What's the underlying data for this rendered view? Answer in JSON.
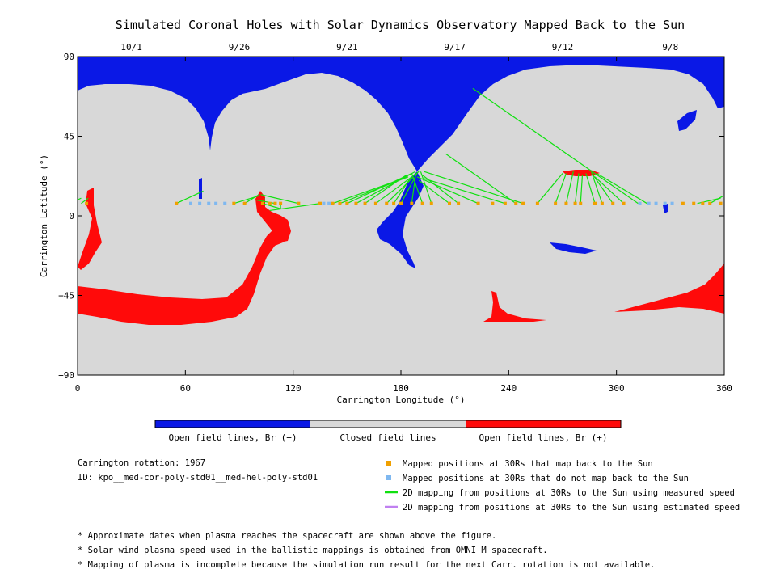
{
  "title": "Simulated Coronal Holes with Solar Dynamics Observatory Mapped Back to the Sun",
  "colors": {
    "open_negative": "#0a18e6",
    "closed": "#d8d8d8",
    "open_positive": "#ff0a0a",
    "mapped": "#f0a000",
    "unmapped": "#7fb8f0",
    "measured_line": "#10e010",
    "estimated_line": "#c080f0"
  },
  "chart_data": {
    "type": "heatmap",
    "title": "Simulated Coronal Holes with Solar Dynamics Observatory Mapped Back to the Sun",
    "xlabel": "Carrington Longitude (°)",
    "ylabel": "Carrington Latitude (°)",
    "xlim": [
      0,
      360
    ],
    "ylim": [
      -90,
      90
    ],
    "x_ticks": [
      0,
      60,
      120,
      180,
      240,
      300,
      360
    ],
    "y_ticks": [
      90,
      45,
      0,
      -45,
      -90
    ],
    "top_dates": [
      {
        "label": "10/1",
        "lon": 30
      },
      {
        "label": "9/26",
        "lon": 90
      },
      {
        "label": "9/21",
        "lon": 150
      },
      {
        "label": "9/17",
        "lon": 210
      },
      {
        "label": "9/12",
        "lon": 270
      },
      {
        "label": "9/8",
        "lon": 330
      }
    ],
    "mapped_lon": [
      5,
      55,
      87,
      93,
      103,
      107,
      110,
      113,
      123,
      135,
      142,
      146,
      150,
      155,
      160,
      166,
      172,
      176,
      180,
      186,
      192,
      197,
      207,
      212,
      223,
      231,
      238,
      244,
      248,
      256,
      266,
      272,
      277,
      280,
      288,
      292,
      298,
      304,
      337,
      343,
      348,
      352,
      358
    ],
    "unmapped_lon": [
      63,
      68,
      73,
      77,
      82,
      137,
      140,
      313,
      318,
      322,
      327,
      331
    ],
    "positions_lat": 7,
    "measured_lines": [
      {
        "from": [
          2,
          7
        ],
        "to": [
          6,
          10
        ]
      },
      {
        "from": [
          55,
          7
        ],
        "to": [
          70,
          14
        ]
      },
      {
        "from": [
          87,
          7
        ],
        "to": [
          100,
          11
        ]
      },
      {
        "from": [
          93,
          7
        ],
        "to": [
          101,
          12
        ]
      },
      {
        "from": [
          103,
          7
        ],
        "to": [
          104,
          10
        ]
      },
      {
        "from": [
          110,
          7
        ],
        "to": [
          99,
          9
        ]
      },
      {
        "from": [
          123,
          7
        ],
        "to": [
          102,
          12
        ]
      },
      {
        "from": [
          103,
          7
        ],
        "to": [
          113,
          4
        ]
      },
      {
        "from": [
          113,
          4
        ],
        "to": [
          113,
          6
        ]
      },
      {
        "from": [
          135,
          7
        ],
        "to": [
          107,
          3
        ]
      },
      {
        "from": [
          142,
          7
        ],
        "to": [
          184,
          22
        ]
      },
      {
        "from": [
          146,
          7
        ],
        "to": [
          184,
          22
        ]
      },
      {
        "from": [
          150,
          7
        ],
        "to": [
          186,
          24
        ]
      },
      {
        "from": [
          155,
          7
        ],
        "to": [
          188,
          25
        ]
      },
      {
        "from": [
          160,
          7
        ],
        "to": [
          183,
          23
        ]
      },
      {
        "from": [
          166,
          7
        ],
        "to": [
          190,
          25
        ]
      },
      {
        "from": [
          172,
          7
        ],
        "to": [
          187,
          22
        ]
      },
      {
        "from": [
          176,
          7
        ],
        "to": [
          185,
          21
        ]
      },
      {
        "from": [
          180,
          7
        ],
        "to": [
          189,
          24
        ]
      },
      {
        "from": [
          186,
          7
        ],
        "to": [
          188,
          22
        ]
      },
      {
        "from": [
          192,
          7
        ],
        "to": [
          186,
          24
        ]
      },
      {
        "from": [
          197,
          7
        ],
        "to": [
          191,
          25
        ]
      },
      {
        "from": [
          207,
          7
        ],
        "to": [
          190,
          20
        ]
      },
      {
        "from": [
          212,
          7
        ],
        "to": [
          192,
          23
        ]
      },
      {
        "from": [
          223,
          7
        ],
        "to": [
          189,
          22
        ]
      },
      {
        "from": [
          238,
          7
        ],
        "to": [
          193,
          21
        ]
      },
      {
        "from": [
          244,
          7
        ],
        "to": [
          205,
          35
        ]
      },
      {
        "from": [
          248,
          7
        ],
        "to": [
          193,
          25
        ]
      },
      {
        "from": [
          256,
          7
        ],
        "to": [
          270,
          24
        ]
      },
      {
        "from": [
          266,
          7
        ],
        "to": [
          272,
          24
        ]
      },
      {
        "from": [
          272,
          7
        ],
        "to": [
          276,
          25
        ]
      },
      {
        "from": [
          277,
          7
        ],
        "to": [
          279,
          24
        ]
      },
      {
        "from": [
          280,
          7
        ],
        "to": [
          281,
          23
        ]
      },
      {
        "from": [
          288,
          7
        ],
        "to": [
          283,
          24
        ]
      },
      {
        "from": [
          292,
          7
        ],
        "to": [
          286,
          25
        ]
      },
      {
        "from": [
          298,
          7
        ],
        "to": [
          287,
          23
        ]
      },
      {
        "from": [
          304,
          7
        ],
        "to": [
          288,
          22
        ]
      },
      {
        "from": [
          312,
          7
        ],
        "to": [
          220,
          72
        ]
      },
      {
        "from": [
          317,
          7
        ],
        "to": [
          289,
          24
        ]
      },
      {
        "from": [
          345,
          7
        ],
        "to": [
          358,
          10
        ]
      },
      {
        "from": [
          352,
          7
        ],
        "to": [
          359,
          11
        ]
      },
      {
        "from": [
          0,
          9
        ],
        "to": [
          2,
          10
        ]
      }
    ]
  },
  "colorbar_labels": [
    "Open field lines, Br (−)",
    "Closed field lines",
    "Open field lines, Br (+)"
  ],
  "info": {
    "rotation": "Carrington rotation: 1967",
    "id": "ID: kpo__med-cor-poly-std01__med-hel-poly-std01"
  },
  "legend": [
    {
      "kind": "square",
      "color_key": "mapped",
      "label": "Mapped positions at 30Rs that map back to the Sun"
    },
    {
      "kind": "square",
      "color_key": "unmapped",
      "label": "Mapped positions at 30Rs that do not map back to the Sun"
    },
    {
      "kind": "line",
      "color_key": "measured_line",
      "label": "2D mapping from positions at 30Rs to the Sun using measured speed"
    },
    {
      "kind": "line",
      "color_key": "estimated_line",
      "label": "2D mapping from positions at 30Rs to the Sun using estimated speed"
    }
  ],
  "notes": [
    "* Approximate dates when plasma reaches the spacecraft are shown above the figure.",
    "* Solar wind plasma speed used in the ballistic mappings is obtained from OMNI_M spacecraft.",
    "* Mapping of plasma is incomplete because the simulation run result for the next Carr. rotation is not available."
  ]
}
